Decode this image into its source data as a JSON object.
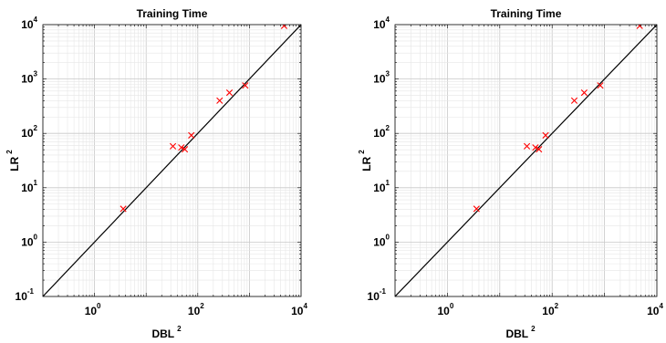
{
  "chart_data": [
    {
      "type": "scatter",
      "title": "Training Time",
      "xlabel": "DBL",
      "xlabel_sup": "2",
      "ylabel": "LR",
      "ylabel_sup": "2",
      "xscale": "log",
      "yscale": "log",
      "xlim": [
        0.1,
        10000
      ],
      "ylim": [
        0.1,
        10000
      ],
      "x_ticks": [
        {
          "base": "10",
          "exp": "0",
          "value": 1
        },
        {
          "base": "10",
          "exp": "2",
          "value": 100
        },
        {
          "base": "10",
          "exp": "4",
          "value": 10000
        }
      ],
      "y_ticks": [
        {
          "base": "10",
          "exp": "-1",
          "value": 0.1
        },
        {
          "base": "10",
          "exp": "0",
          "value": 1
        },
        {
          "base": "10",
          "exp": "1",
          "value": 10
        },
        {
          "base": "10",
          "exp": "2",
          "value": 100
        },
        {
          "base": "10",
          "exp": "3",
          "value": 1000
        },
        {
          "base": "10",
          "exp": "4",
          "value": 10000
        }
      ],
      "grid": true,
      "marker": "x",
      "marker_color": "#ff0000",
      "reference_line": "y = x",
      "points": [
        {
          "x": 3.6,
          "y": 4.1
        },
        {
          "x": 33,
          "y": 58
        },
        {
          "x": 48,
          "y": 55
        },
        {
          "x": 56,
          "y": 51
        },
        {
          "x": 75,
          "y": 92
        },
        {
          "x": 265,
          "y": 400
        },
        {
          "x": 410,
          "y": 560
        },
        {
          "x": 830,
          "y": 760
        },
        {
          "x": 4700,
          "y": 9500
        }
      ]
    },
    {
      "type": "scatter",
      "title": "Training Time",
      "xlabel": "DBL",
      "xlabel_sup": "2",
      "ylabel": "LR",
      "ylabel_sup": "2",
      "xscale": "log",
      "yscale": "log",
      "xlim": [
        0.1,
        10000
      ],
      "ylim": [
        0.1,
        10000
      ],
      "x_ticks": [
        {
          "base": "10",
          "exp": "0",
          "value": 1
        },
        {
          "base": "10",
          "exp": "2",
          "value": 100
        },
        {
          "base": "10",
          "exp": "4",
          "value": 10000
        }
      ],
      "y_ticks": [
        {
          "base": "10",
          "exp": "-1",
          "value": 0.1
        },
        {
          "base": "10",
          "exp": "0",
          "value": 1
        },
        {
          "base": "10",
          "exp": "1",
          "value": 10
        },
        {
          "base": "10",
          "exp": "2",
          "value": 100
        },
        {
          "base": "10",
          "exp": "3",
          "value": 1000
        },
        {
          "base": "10",
          "exp": "4",
          "value": 10000
        }
      ],
      "grid": true,
      "marker": "x",
      "marker_color": "#ff0000",
      "reference_line": "y = x",
      "points": [
        {
          "x": 3.6,
          "y": 4.1
        },
        {
          "x": 33,
          "y": 58
        },
        {
          "x": 48,
          "y": 55
        },
        {
          "x": 56,
          "y": 51
        },
        {
          "x": 75,
          "y": 92
        },
        {
          "x": 265,
          "y": 400
        },
        {
          "x": 410,
          "y": 560
        },
        {
          "x": 830,
          "y": 760
        },
        {
          "x": 4700,
          "y": 9500
        }
      ]
    }
  ]
}
